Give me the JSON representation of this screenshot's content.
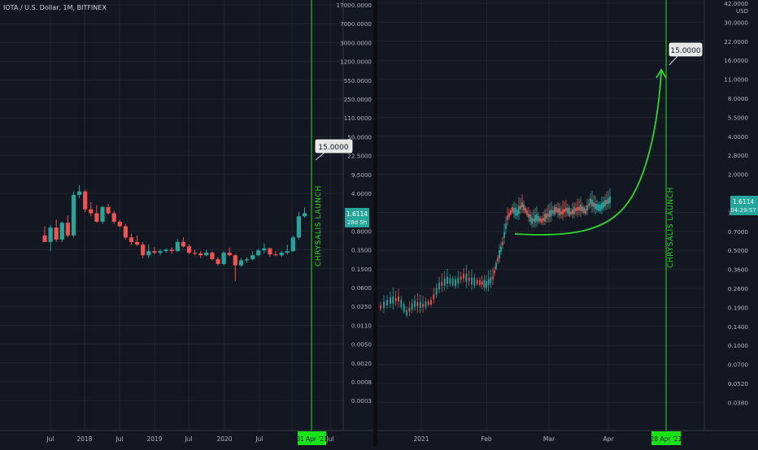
{
  "colors": {
    "background": "#131722",
    "grid": "#2a2e39",
    "up": "#26a69a",
    "down": "#ef5350",
    "axis_text": "#b2b5be",
    "marker_green": "#17e317",
    "curve_green": "#2bd82b",
    "price_tag": "#26a69a"
  },
  "left_chart": {
    "header": "IOTA / U.S. Dollar, 1M, BITFINEX",
    "y_ticks": [
      "17000.0000",
      "7000.0000",
      "3000.0000",
      "1200.0000",
      "550.0000",
      "250.0000",
      "110.0000",
      "50.0000",
      "22.5000",
      "9.5000",
      "4.0000",
      "1.6114",
      "0.8000",
      "0.3500",
      "0.1500",
      "0.0600",
      "0.0250",
      "0.0110",
      "0.0050",
      "0.0020",
      "0.0008",
      "0.0003"
    ],
    "x_ticks": [
      "Jul",
      "2018",
      "Jul",
      "2019",
      "Jul",
      "2020",
      "Jul",
      "202",
      "Jul"
    ],
    "price_tag": {
      "value": "1.6114",
      "countdown": "28d 5h"
    },
    "target_label": "15.0000",
    "event_label": "CHRYSALIS LAUNCH",
    "date_marker": "01 Apr '21"
  },
  "right_chart": {
    "y_ticks": [
      "42.0000",
      "30.0000",
      "22.0000",
      "16.0000",
      "11.0000",
      "8.0000",
      "5.5000",
      "4.0000",
      "2.8000",
      "2.0000",
      "1.6114",
      "1.0000",
      "0.7000",
      "0.5000",
      "0.3600",
      "0.2600",
      "0.1900",
      "0.1400",
      "0.1000",
      "0.0700",
      "0.0520",
      "0.0380"
    ],
    "axis_unit": "USD",
    "x_ticks": [
      "2021",
      "Feb",
      "Mar",
      "Apr"
    ],
    "price_tag": {
      "value": "1.6114",
      "countdown": "04:29:57"
    },
    "target_label": "15.0000",
    "event_label": "CHRYSALIS LAUNCH",
    "date_marker": "28 Apr '21"
  },
  "chart_data": [
    {
      "type": "candlestick",
      "title": "IOTA / U.S. Dollar, 1M, BITFINEX",
      "scale": "log",
      "target": 15.0,
      "candles": [
        {
          "t": "2017-06",
          "o": 0.6,
          "h": 0.9,
          "l": 0.45,
          "c": 0.45
        },
        {
          "t": "2017-07",
          "o": 0.45,
          "h": 0.95,
          "l": 0.3,
          "c": 0.85
        },
        {
          "t": "2017-08",
          "o": 0.85,
          "h": 1.2,
          "l": 0.45,
          "c": 0.5
        },
        {
          "t": "2017-09",
          "o": 0.5,
          "h": 1.1,
          "l": 0.45,
          "c": 1.05
        },
        {
          "t": "2017-10",
          "o": 1.05,
          "h": 1.45,
          "l": 0.55,
          "c": 0.6
        },
        {
          "t": "2017-11",
          "o": 0.6,
          "h": 4.2,
          "l": 0.55,
          "c": 3.6
        },
        {
          "t": "2017-12",
          "o": 3.6,
          "h": 5.5,
          "l": 3.1,
          "c": 4.2
        },
        {
          "t": "2018-01",
          "o": 4.2,
          "h": 4.5,
          "l": 1.7,
          "c": 1.9
        },
        {
          "t": "2018-02",
          "o": 1.9,
          "h": 2.6,
          "l": 1.4,
          "c": 1.6
        },
        {
          "t": "2018-03",
          "o": 1.6,
          "h": 2.3,
          "l": 1.05,
          "c": 1.1
        },
        {
          "t": "2018-04",
          "o": 1.1,
          "h": 2.2,
          "l": 1.0,
          "c": 2.1
        },
        {
          "t": "2018-05",
          "o": 2.1,
          "h": 2.4,
          "l": 1.5,
          "c": 1.6
        },
        {
          "t": "2018-06",
          "o": 1.6,
          "h": 1.8,
          "l": 1.0,
          "c": 1.1
        },
        {
          "t": "2018-07",
          "o": 1.1,
          "h": 1.2,
          "l": 0.85,
          "c": 0.9
        },
        {
          "t": "2018-08",
          "o": 0.9,
          "h": 1.0,
          "l": 0.5,
          "c": 0.55
        },
        {
          "t": "2018-09",
          "o": 0.55,
          "h": 0.65,
          "l": 0.4,
          "c": 0.45
        },
        {
          "t": "2018-10",
          "o": 0.45,
          "h": 0.6,
          "l": 0.38,
          "c": 0.4
        },
        {
          "t": "2018-11",
          "o": 0.4,
          "h": 0.45,
          "l": 0.22,
          "c": 0.25
        },
        {
          "t": "2018-12",
          "o": 0.25,
          "h": 0.4,
          "l": 0.22,
          "c": 0.3
        },
        {
          "t": "2019-01",
          "o": 0.3,
          "h": 0.36,
          "l": 0.26,
          "c": 0.28
        },
        {
          "t": "2019-02",
          "o": 0.28,
          "h": 0.33,
          "l": 0.25,
          "c": 0.3
        },
        {
          "t": "2019-03",
          "o": 0.3,
          "h": 0.34,
          "l": 0.28,
          "c": 0.32
        },
        {
          "t": "2019-04",
          "o": 0.32,
          "h": 0.36,
          "l": 0.27,
          "c": 0.3
        },
        {
          "t": "2019-05",
          "o": 0.3,
          "h": 0.52,
          "l": 0.29,
          "c": 0.45
        },
        {
          "t": "2019-06",
          "o": 0.45,
          "h": 0.55,
          "l": 0.35,
          "c": 0.37
        },
        {
          "t": "2019-07",
          "o": 0.37,
          "h": 0.4,
          "l": 0.26,
          "c": 0.28
        },
        {
          "t": "2019-08",
          "o": 0.28,
          "h": 0.32,
          "l": 0.25,
          "c": 0.27
        },
        {
          "t": "2019-09",
          "o": 0.27,
          "h": 0.3,
          "l": 0.22,
          "c": 0.25
        },
        {
          "t": "2019-10",
          "o": 0.25,
          "h": 0.32,
          "l": 0.24,
          "c": 0.28
        },
        {
          "t": "2019-11",
          "o": 0.28,
          "h": 0.3,
          "l": 0.2,
          "c": 0.21
        },
        {
          "t": "2019-12",
          "o": 0.21,
          "h": 0.23,
          "l": 0.16,
          "c": 0.17
        },
        {
          "t": "2020-01",
          "o": 0.17,
          "h": 0.3,
          "l": 0.16,
          "c": 0.28
        },
        {
          "t": "2020-02",
          "o": 0.28,
          "h": 0.35,
          "l": 0.24,
          "c": 0.25
        },
        {
          "t": "2020-03",
          "o": 0.25,
          "h": 0.26,
          "l": 0.08,
          "c": 0.16
        },
        {
          "t": "2020-04",
          "o": 0.16,
          "h": 0.22,
          "l": 0.15,
          "c": 0.2
        },
        {
          "t": "2020-05",
          "o": 0.2,
          "h": 0.23,
          "l": 0.18,
          "c": 0.21
        },
        {
          "t": "2020-06",
          "o": 0.21,
          "h": 0.3,
          "l": 0.2,
          "c": 0.25
        },
        {
          "t": "2020-07",
          "o": 0.25,
          "h": 0.33,
          "l": 0.24,
          "c": 0.31
        },
        {
          "t": "2020-08",
          "o": 0.31,
          "h": 0.42,
          "l": 0.27,
          "c": 0.34
        },
        {
          "t": "2020-09",
          "o": 0.34,
          "h": 0.35,
          "l": 0.23,
          "c": 0.26
        },
        {
          "t": "2020-10",
          "o": 0.26,
          "h": 0.3,
          "l": 0.24,
          "c": 0.25
        },
        {
          "t": "2020-11",
          "o": 0.25,
          "h": 0.3,
          "l": 0.23,
          "c": 0.28
        },
        {
          "t": "2020-12",
          "o": 0.28,
          "h": 0.4,
          "l": 0.26,
          "c": 0.3
        },
        {
          "t": "2021-01",
          "o": 0.3,
          "h": 0.6,
          "l": 0.29,
          "c": 0.55
        },
        {
          "t": "2021-02",
          "o": 0.55,
          "h": 1.7,
          "l": 0.5,
          "c": 1.4
        },
        {
          "t": "2021-03",
          "o": 1.4,
          "h": 2.05,
          "l": 1.3,
          "c": 1.61
        }
      ]
    },
    {
      "type": "candlestick",
      "scale": "log",
      "target": 15.0,
      "y_unit": "USD"
    }
  ]
}
